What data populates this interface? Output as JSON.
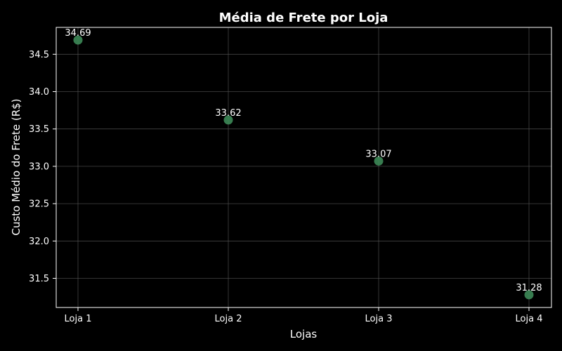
{
  "chart_data": {
    "type": "scatter",
    "title": "Média de Frete por Loja",
    "xlabel": "Lojas",
    "ylabel": "Custo Médio do Frete (R$)",
    "categories": [
      "Loja 1",
      "Loja 2",
      "Loja 3",
      "Loja 4"
    ],
    "values": [
      34.69,
      33.62,
      33.07,
      31.28
    ],
    "data_labels": [
      "34.69",
      "33.62",
      "33.07",
      "31.28"
    ],
    "ylim": [
      31.11,
      34.86
    ],
    "yticks": [
      31.5,
      32.0,
      32.5,
      33.0,
      33.5,
      34.0,
      34.5
    ],
    "ytick_labels": [
      "31.5",
      "32.0",
      "32.5",
      "33.0",
      "33.5",
      "34.0",
      "34.5"
    ],
    "grid": true,
    "colors": {
      "background": "#000000",
      "marker": "#3d8a58",
      "grid": "#555555",
      "text": "#ffffff",
      "axes": "#ffffff"
    }
  }
}
